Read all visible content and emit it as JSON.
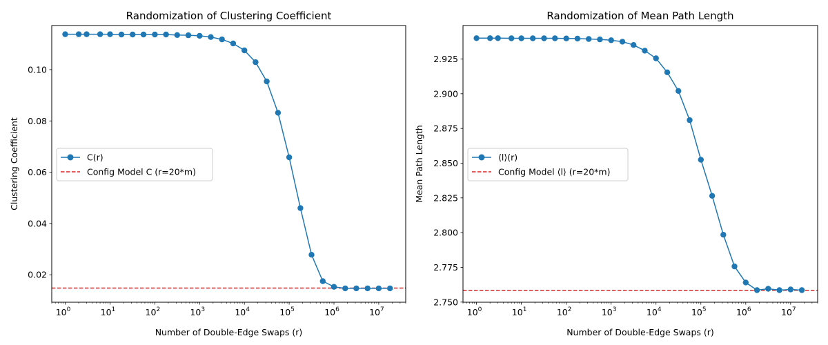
{
  "chart_data": [
    {
      "type": "line",
      "title": "Randomization of Clustering Coefficient",
      "xlabel": "Number of Double-Edge Swaps (r)",
      "ylabel": "Clustering Coefficient",
      "xscale": "log",
      "xlim": [
        0.5,
        40000000
      ],
      "ylim": [
        0.0093,
        0.1172
      ],
      "xticks": [
        {
          "value": 1,
          "base": "10",
          "exp": "0"
        },
        {
          "value": 10,
          "base": "10",
          "exp": "1"
        },
        {
          "value": 100,
          "base": "10",
          "exp": "2"
        },
        {
          "value": 1000,
          "base": "10",
          "exp": "3"
        },
        {
          "value": 10000,
          "base": "10",
          "exp": "4"
        },
        {
          "value": 100000,
          "base": "10",
          "exp": "5"
        },
        {
          "value": 1000000,
          "base": "10",
          "exp": "6"
        },
        {
          "value": 10000000,
          "base": "10",
          "exp": "7"
        }
      ],
      "yticks": [
        {
          "value": 0.02,
          "label": "0.02"
        },
        {
          "value": 0.04,
          "label": "0.04"
        },
        {
          "value": 0.06,
          "label": "0.06"
        },
        {
          "value": 0.08,
          "label": "0.08"
        },
        {
          "value": 0.1,
          "label": "0.10"
        }
      ],
      "series": [
        {
          "name": "C(r)",
          "color": "#1f77b4",
          "x": [
            1,
            2,
            3,
            6,
            10,
            18,
            32,
            56,
            100,
            178,
            316,
            562,
            1000,
            1780,
            3160,
            5620,
            10000,
            17800,
            31600,
            56200,
            100000,
            178000,
            316000,
            562000,
            1000000,
            1780000,
            3160000,
            5620000,
            10000000,
            17800000
          ],
          "y": [
            0.1138,
            0.1138,
            0.1138,
            0.1138,
            0.1138,
            0.1137,
            0.1137,
            0.1137,
            0.1137,
            0.1137,
            0.1135,
            0.1134,
            0.1132,
            0.1127,
            0.1118,
            0.1102,
            0.1075,
            0.1029,
            0.0954,
            0.0832,
            0.0658,
            0.046,
            0.0278,
            0.0175,
            0.0153,
            0.0147,
            0.0147,
            0.0147,
            0.0147,
            0.0147
          ]
        }
      ],
      "reference_line": {
        "name": "Config Model C (r=20*m)",
        "value": 0.0148,
        "color": "#d62728",
        "style": "dashed"
      },
      "legend_position": "center-left"
    },
    {
      "type": "line",
      "title": "Randomization of Mean Path Length",
      "xlabel": "Number of Double-Edge Swaps (r)",
      "ylabel": "Mean Path Length",
      "xscale": "log",
      "xlim": [
        0.5,
        40000000
      ],
      "ylim": [
        2.7499,
        2.9491
      ],
      "xticks": [
        {
          "value": 1,
          "base": "10",
          "exp": "0"
        },
        {
          "value": 10,
          "base": "10",
          "exp": "1"
        },
        {
          "value": 100,
          "base": "10",
          "exp": "2"
        },
        {
          "value": 1000,
          "base": "10",
          "exp": "3"
        },
        {
          "value": 10000,
          "base": "10",
          "exp": "4"
        },
        {
          "value": 100000,
          "base": "10",
          "exp": "5"
        },
        {
          "value": 1000000,
          "base": "10",
          "exp": "6"
        },
        {
          "value": 10000000,
          "base": "10",
          "exp": "7"
        }
      ],
      "yticks": [
        {
          "value": 2.75,
          "label": "2.750"
        },
        {
          "value": 2.775,
          "label": "2.775"
        },
        {
          "value": 2.8,
          "label": "2.800"
        },
        {
          "value": 2.825,
          "label": "2.825"
        },
        {
          "value": 2.85,
          "label": "2.850"
        },
        {
          "value": 2.875,
          "label": "2.875"
        },
        {
          "value": 2.9,
          "label": "2.900"
        },
        {
          "value": 2.925,
          "label": "2.925"
        }
      ],
      "series": [
        {
          "name": "⟨l⟩(r)",
          "color": "#1f77b4",
          "x": [
            1,
            2,
            3,
            6,
            10,
            18,
            32,
            56,
            100,
            178,
            316,
            562,
            1000,
            1780,
            3160,
            5620,
            10000,
            17800,
            31600,
            56200,
            100000,
            178000,
            316000,
            562000,
            1000000,
            1780000,
            3160000,
            5620000,
            10000000,
            17800000
          ],
          "y": [
            2.94,
            2.94,
            2.94,
            2.9399,
            2.9399,
            2.9399,
            2.9399,
            2.9399,
            2.9398,
            2.9397,
            2.9394,
            2.9391,
            2.9385,
            2.9375,
            2.9351,
            2.931,
            2.9255,
            2.9154,
            2.902,
            2.881,
            2.8525,
            2.8265,
            2.7985,
            2.7757,
            2.7641,
            2.7586,
            2.7596,
            2.7586,
            2.7591,
            2.7586
          ]
        }
      ],
      "reference_line": {
        "name": "Config Model ⟨l⟩ (r=20*m)",
        "value": 2.7585,
        "color": "#d62728",
        "style": "dashed"
      },
      "legend_position": "center-left"
    }
  ]
}
